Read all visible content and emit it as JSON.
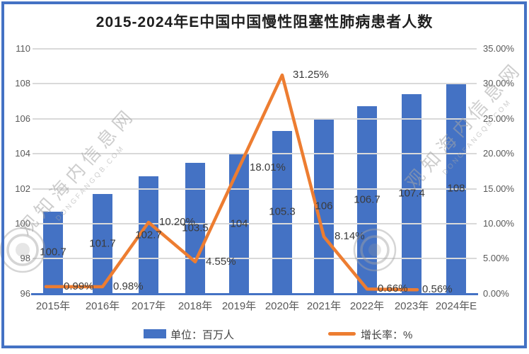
{
  "title": "2015-2024年E中国中国慢性阻塞性肺病患者人数",
  "watermark": {
    "cn": "观知海内信息网",
    "en": "DONGFANGQB.COM"
  },
  "chart_data": {
    "type": "bar",
    "subtype": "bar+line combo, dual axis",
    "categories": [
      "2015年",
      "2016年",
      "2017年",
      "2018年",
      "2019年",
      "2020年",
      "2021年",
      "2022年",
      "2023年",
      "2024年E"
    ],
    "series": [
      {
        "name": "单位：百万人",
        "type": "bar",
        "axis": "left",
        "color": "#4472C4",
        "values": [
          100.7,
          101.7,
          102.7,
          103.5,
          104,
          105.3,
          106,
          106.7,
          107.4,
          108
        ],
        "labels": [
          "100.7",
          "101.7",
          "102.7",
          "103.5",
          "104",
          "105.3",
          "106",
          "106.7",
          "107.4",
          "108"
        ]
      },
      {
        "name": "增长率：%",
        "type": "line",
        "axis": "right",
        "color": "#ED7D31",
        "values": [
          0.99,
          0.98,
          10.2,
          4.55,
          18.01,
          31.25,
          8.14,
          0.66,
          0.56
        ],
        "labels": [
          "0.99%",
          "0.98%",
          "10.20%",
          "4.55%",
          "18.01%",
          "31.25%",
          "8.14%",
          "0.66%",
          "0.56%"
        ]
      }
    ],
    "left_axis": {
      "min": 96,
      "max": 110,
      "ticks_top_to_bottom": [
        "110",
        "108",
        "106",
        "104",
        "102",
        "100",
        "98",
        "96"
      ]
    },
    "right_axis": {
      "min": 0,
      "max": 35,
      "ticks_top_to_bottom": [
        "35.00%",
        "30.00%",
        "25.00%",
        "20.00%",
        "15.00%",
        "10.00%",
        "5.00%",
        "0.00%"
      ]
    },
    "grid": true,
    "legend_position": "bottom",
    "legend": [
      {
        "label": "单位：百万人",
        "swatch": "rect",
        "color": "#4472C4"
      },
      {
        "label": "增长率：%",
        "swatch": "line",
        "color": "#ED7D31"
      }
    ]
  }
}
